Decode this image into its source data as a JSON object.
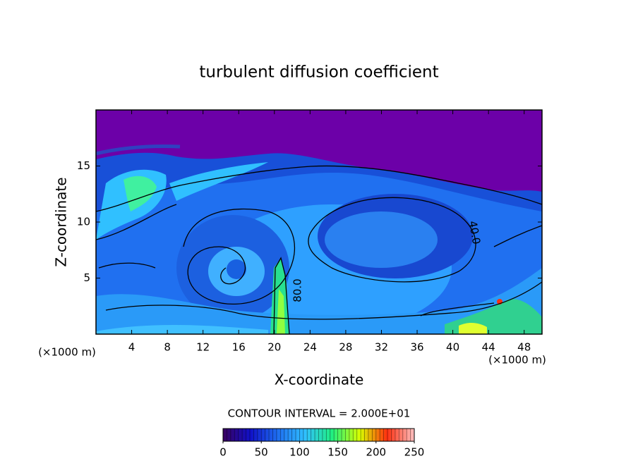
{
  "chart_data": {
    "type": "contour",
    "title": "turbulent diffusion coefficient",
    "xlabel": "X-coordinate",
    "ylabel": "Z-coordinate",
    "x_unit": "(×1000 m)",
    "y_unit": "(×1000 m)",
    "xlim": [
      0,
      50
    ],
    "xticks": [
      4,
      8,
      12,
      16,
      20,
      24,
      28,
      32,
      36,
      40,
      44,
      48
    ],
    "ylim": [
      0,
      20
    ],
    "yticks": [
      5,
      10,
      15
    ],
    "contour_interval_label": "CONTOUR INTERVAL = 2.000E+01",
    "contour_labels": [
      {
        "value": 80,
        "label": "80.0"
      },
      {
        "value": 40,
        "label": "40.0"
      }
    ],
    "colorbar": {
      "lim": [
        0,
        250
      ],
      "ticks": [
        0,
        50,
        100,
        150,
        200,
        250
      ]
    },
    "colormap": [
      "#3a0060",
      "#1010c8",
      "#1e6ef0",
      "#30c0ff",
      "#20f080",
      "#d8ff00",
      "#ff3010",
      "#ffc0c0"
    ]
  }
}
